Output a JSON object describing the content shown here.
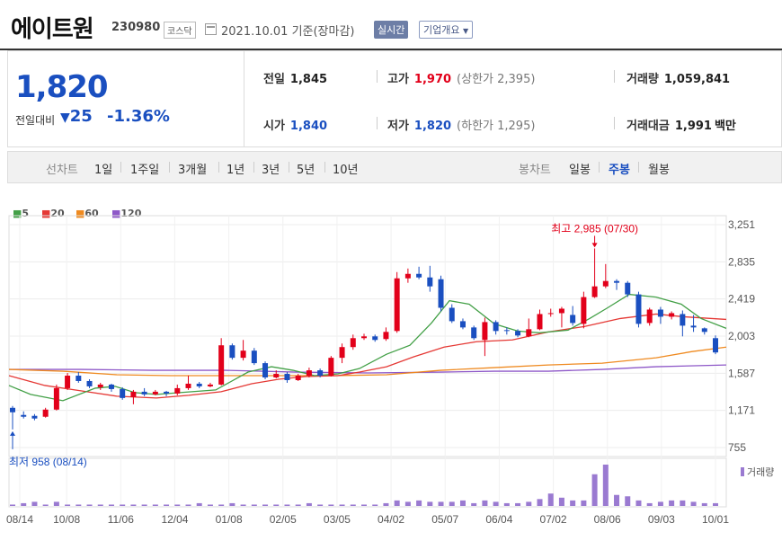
{
  "header": {
    "name": "에이트원",
    "code": "230980",
    "market": "코스닥",
    "date": "2021.10.01 기준(장마감)",
    "realtime_button": "실시간",
    "overview_button": "기업개요"
  },
  "quote": {
    "price": "1,820",
    "change_label": "전일대비",
    "change": "25",
    "change_pct": "-1.36%",
    "prev_label": "전일",
    "prev": "1,845",
    "high_label": "고가",
    "high": "1,970",
    "upper_limit": "(상한가 2,395)",
    "volume_label": "거래량",
    "volume": "1,059,841",
    "open_label": "시가",
    "open": "1,840",
    "low_label": "저가",
    "low": "1,820",
    "lower_limit": "(하한가 1,295)",
    "amount_label": "거래대금",
    "amount": "1,991",
    "amount_unit": "백만"
  },
  "toolbar": {
    "line_label": "선차트",
    "line_periods": [
      "1일",
      "1주일",
      "3개월",
      "1년",
      "3년",
      "5년",
      "10년"
    ],
    "candle_label": "봉차트",
    "candle_periods": [
      "일봉",
      "주봉",
      "월봉"
    ],
    "candle_selected": "주봉"
  },
  "colors": {
    "up": "#e2001a",
    "down": "#1a4fc0",
    "ma5": "#43a047",
    "ma20": "#e53935",
    "ma60": "#ef8a20",
    "ma120": "#8e58c8"
  },
  "chart_data": {
    "type": "candlestick",
    "legend": [
      "5",
      "20",
      "60",
      "120"
    ],
    "y_ticks": [
      "3,251",
      "2,835",
      "2,419",
      "2,003",
      "1,587",
      "1,171",
      "755"
    ],
    "x_ticks": [
      "08/14",
      "10/08",
      "11/06",
      "12/04",
      "01/08",
      "02/05",
      "03/05",
      "04/02",
      "05/07",
      "06/04",
      "07/02",
      "08/06",
      "09/03",
      "10/01"
    ],
    "high_annotation": "최고 2,985 (07/30)",
    "low_annotation": "최저 958 (08/14)",
    "volume_label": "거래량",
    "ylim": [
      755,
      3251
    ],
    "candles": [
      [
        1200,
        1150,
        1220,
        958
      ],
      [
        1120,
        1100,
        1160,
        1080
      ],
      [
        1110,
        1080,
        1130,
        1060
      ],
      [
        1100,
        1180,
        1200,
        1090
      ],
      [
        1180,
        1420,
        1460,
        1170
      ],
      [
        1420,
        1560,
        1590,
        1400
      ],
      [
        1560,
        1500,
        1600,
        1480
      ],
      [
        1500,
        1440,
        1520,
        1420
      ],
      [
        1430,
        1460,
        1480,
        1400
      ],
      [
        1460,
        1410,
        1470,
        1380
      ],
      [
        1410,
        1310,
        1430,
        1290
      ],
      [
        1320,
        1380,
        1400,
        1240
      ],
      [
        1380,
        1350,
        1420,
        1330
      ],
      [
        1350,
        1380,
        1400,
        1340
      ],
      [
        1380,
        1360,
        1390,
        1330
      ],
      [
        1360,
        1420,
        1460,
        1340
      ],
      [
        1420,
        1470,
        1560,
        1400
      ],
      [
        1470,
        1440,
        1490,
        1420
      ],
      [
        1440,
        1460,
        1480,
        1430
      ],
      [
        1460,
        1900,
        1980,
        1450
      ],
      [
        1900,
        1760,
        1920,
        1740
      ],
      [
        1760,
        1840,
        1960,
        1730
      ],
      [
        1840,
        1700,
        1870,
        1680
      ],
      [
        1700,
        1540,
        1720,
        1520
      ],
      [
        1540,
        1580,
        1620,
        1530
      ],
      [
        1580,
        1510,
        1600,
        1480
      ],
      [
        1510,
        1560,
        1580,
        1500
      ],
      [
        1560,
        1620,
        1650,
        1540
      ],
      [
        1620,
        1560,
        1640,
        1540
      ],
      [
        1560,
        1760,
        1780,
        1550
      ],
      [
        1760,
        1880,
        1920,
        1700
      ],
      [
        1880,
        1980,
        2020,
        1850
      ],
      [
        1980,
        2000,
        2030,
        1960
      ],
      [
        2000,
        1960,
        2020,
        1940
      ],
      [
        1970,
        2050,
        2100,
        1950
      ],
      [
        2060,
        2650,
        2720,
        2040
      ],
      [
        2650,
        2700,
        2760,
        2600
      ],
      [
        2700,
        2660,
        2780,
        2640
      ],
      [
        2660,
        2560,
        2790,
        2500
      ],
      [
        2640,
        2320,
        2680,
        2280
      ],
      [
        2320,
        2170,
        2360,
        2150
      ],
      [
        2170,
        2100,
        2200,
        2080
      ],
      [
        2100,
        1980,
        2120,
        1960
      ],
      [
        1960,
        2160,
        2210,
        1780
      ],
      [
        2160,
        2060,
        2180,
        2020
      ],
      [
        2070,
        2060,
        2100,
        2020
      ],
      [
        2060,
        2010,
        2080,
        1990
      ],
      [
        2000,
        2080,
        2200,
        1990
      ],
      [
        2080,
        2250,
        2300,
        2070
      ],
      [
        2250,
        2260,
        2310,
        2220
      ],
      [
        2260,
        2310,
        2330,
        2100
      ],
      [
        2240,
        2150,
        2340,
        2120
      ],
      [
        2140,
        2440,
        2500,
        2090
      ],
      [
        2440,
        2560,
        2985,
        2430
      ],
      [
        2560,
        2620,
        2810,
        2540
      ],
      [
        2620,
        2600,
        2640,
        2520
      ],
      [
        2600,
        2470,
        2620,
        2440
      ],
      [
        2470,
        2140,
        2500,
        2100
      ],
      [
        2150,
        2300,
        2320,
        2120
      ],
      [
        2300,
        2220,
        2330,
        2140
      ],
      [
        2220,
        2260,
        2280,
        2190
      ],
      [
        2250,
        2120,
        2290,
        2000
      ],
      [
        2120,
        2100,
        2240,
        2050
      ],
      [
        2090,
        2050,
        2100,
        2020
      ],
      [
        1980,
        1820,
        2010,
        1800
      ]
    ],
    "ma5": [
      [
        0,
        1450
      ],
      [
        24,
        1350
      ],
      [
        60,
        1280
      ],
      [
        96,
        1420
      ],
      [
        118,
        1440
      ],
      [
        140,
        1370
      ],
      [
        164,
        1350
      ],
      [
        190,
        1370
      ],
      [
        230,
        1400
      ],
      [
        266,
        1600
      ],
      [
        292,
        1660
      ],
      [
        316,
        1620
      ],
      [
        340,
        1560
      ],
      [
        366,
        1580
      ],
      [
        390,
        1640
      ],
      [
        420,
        1800
      ],
      [
        446,
        1900
      ],
      [
        470,
        2150
      ],
      [
        490,
        2400
      ],
      [
        512,
        2360
      ],
      [
        540,
        2140
      ],
      [
        566,
        2060
      ],
      [
        590,
        2040
      ],
      [
        622,
        2070
      ],
      [
        646,
        2200
      ],
      [
        666,
        2320
      ],
      [
        690,
        2470
      ],
      [
        720,
        2440
      ],
      [
        748,
        2360
      ],
      [
        770,
        2200
      ],
      [
        798,
        2090
      ]
    ],
    "ma20": [
      [
        0,
        1560
      ],
      [
        40,
        1450
      ],
      [
        80,
        1390
      ],
      [
        120,
        1330
      ],
      [
        164,
        1310
      ],
      [
        200,
        1340
      ],
      [
        236,
        1380
      ],
      [
        270,
        1470
      ],
      [
        300,
        1520
      ],
      [
        330,
        1550
      ],
      [
        366,
        1560
      ],
      [
        390,
        1600
      ],
      [
        420,
        1660
      ],
      [
        450,
        1770
      ],
      [
        484,
        1880
      ],
      [
        520,
        1940
      ],
      [
        560,
        1960
      ],
      [
        600,
        2050
      ],
      [
        640,
        2110
      ],
      [
        680,
        2200
      ],
      [
        720,
        2250
      ],
      [
        750,
        2220
      ],
      [
        798,
        2190
      ]
    ],
    "ma60": [
      [
        0,
        1630
      ],
      [
        60,
        1610
      ],
      [
        120,
        1570
      ],
      [
        180,
        1560
      ],
      [
        240,
        1560
      ],
      [
        300,
        1560
      ],
      [
        360,
        1560
      ],
      [
        420,
        1570
      ],
      [
        480,
        1620
      ],
      [
        540,
        1650
      ],
      [
        600,
        1680
      ],
      [
        660,
        1700
      ],
      [
        720,
        1760
      ],
      [
        760,
        1830
      ],
      [
        798,
        1880
      ]
    ],
    "ma120": [
      [
        0,
        1630
      ],
      [
        80,
        1630
      ],
      [
        160,
        1620
      ],
      [
        240,
        1620
      ],
      [
        320,
        1600
      ],
      [
        400,
        1590
      ],
      [
        480,
        1600
      ],
      [
        540,
        1610
      ],
      [
        600,
        1610
      ],
      [
        660,
        1630
      ],
      [
        720,
        1660
      ],
      [
        798,
        1680
      ]
    ],
    "volume": [
      1,
      2,
      3,
      1,
      3,
      1,
      1,
      1,
      1,
      1,
      1,
      1,
      1,
      1,
      1,
      1,
      1,
      2,
      1,
      1,
      2,
      1,
      1,
      1,
      1,
      1,
      1,
      2,
      1,
      1,
      1,
      1,
      1,
      1,
      2,
      4,
      3,
      4,
      3,
      3,
      3,
      4,
      2,
      4,
      3,
      2,
      2,
      3,
      5,
      9,
      6,
      4,
      4,
      23,
      30,
      8,
      7,
      4,
      2,
      3,
      4,
      4,
      3,
      2,
      2
    ]
  }
}
